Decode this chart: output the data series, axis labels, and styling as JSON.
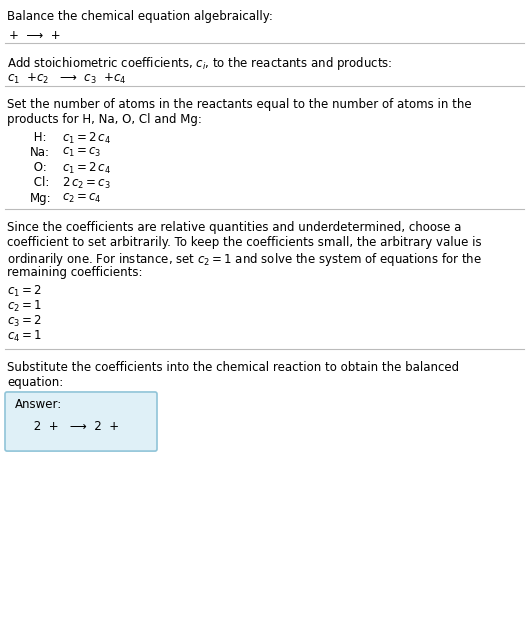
{
  "title": "Balance the chemical equation algebraically:",
  "line1": "+  ⟶  +",
  "section2_title": "Add stoichiometric coefficients, $c_i$, to the reactants and products:",
  "line2_parts": [
    "$c_1$  +$c_2$   ⟶  $c_3$  +$c_4$"
  ],
  "section3_title_lines": [
    "Set the number of atoms in the reactants equal to the number of atoms in the",
    "products for H, Na, O, Cl and Mg:"
  ],
  "equations": [
    [
      " H:",
      "$c_1 = 2\\,c_4$"
    ],
    [
      "Na:",
      "$c_1 = c_3$"
    ],
    [
      " O:",
      "$c_1 = 2\\,c_4$"
    ],
    [
      " Cl:",
      "$2\\,c_2 = c_3$"
    ],
    [
      "Mg:",
      "$c_2 = c_4$"
    ]
  ],
  "section4_text_lines": [
    "Since the coefficients are relative quantities and underdetermined, choose a",
    "coefficient to set arbitrarily. To keep the coefficients small, the arbitrary value is",
    "ordinarily one. For instance, set $c_2 = 1$ and solve the system of equations for the",
    "remaining coefficients:"
  ],
  "coefficients": [
    "$c_1 = 2$",
    "$c_2 = 1$",
    "$c_3 = 2$",
    "$c_4 = 1$"
  ],
  "section5_title_lines": [
    "Substitute the coefficients into the chemical reaction to obtain the balanced",
    "equation:"
  ],
  "answer_label": "Answer:",
  "answer_line": "     2  +   ⟶  2  +",
  "bg_color": "#ffffff",
  "text_color": "#000000",
  "line_color": "#cccccc",
  "answer_box_facecolor": "#dff0f7",
  "answer_box_edgecolor": "#90c4d8"
}
